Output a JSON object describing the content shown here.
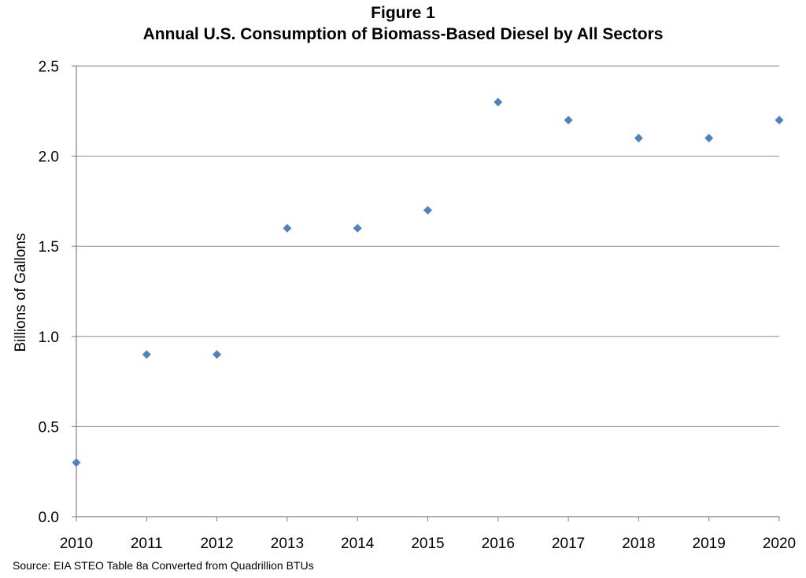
{
  "figure_label": "Figure 1",
  "title": "Annual U.S. Consumption of Biomass-Based Diesel by All Sectors",
  "source": "Source:  EIA STEO Table 8a Converted from Quadrillion BTUs",
  "colors": {
    "marker": "#4F81BD",
    "gridline": "#8C8C8C",
    "axis": "#7F7F7F"
  },
  "chart_data": {
    "type": "scatter",
    "title": "Annual U.S. Consumption of Biomass-Based Diesel by All Sectors",
    "xlabel": "",
    "ylabel": "Billions of Gallons",
    "x": [
      "2010",
      "2011",
      "2012",
      "2013",
      "2014",
      "2015",
      "2016",
      "2017",
      "2018",
      "2019",
      "2020"
    ],
    "y": [
      0.3,
      0.9,
      0.9,
      1.6,
      1.6,
      1.7,
      2.3,
      2.2,
      2.1,
      2.1,
      2.2
    ],
    "yticks": [
      "0.0",
      "0.5",
      "1.0",
      "1.5",
      "2.0",
      "2.5"
    ],
    "ylim": [
      0,
      2.5
    ],
    "grid": "horizontal",
    "legend": "none",
    "marker": "diamond"
  }
}
